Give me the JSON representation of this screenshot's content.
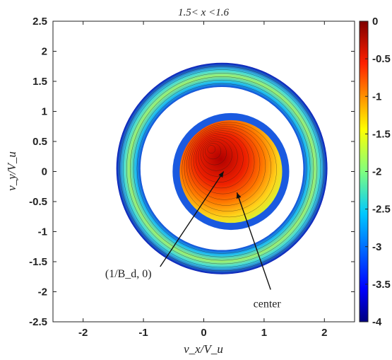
{
  "chart_data": {
    "type": "heatmap",
    "title": "1.5< x <1.6",
    "xlabel": "v_x/V_u",
    "ylabel": "v_y/V_u",
    "xlim": [
      -2.5,
      2.5
    ],
    "ylim": [
      -2.5,
      2.5
    ],
    "x_ticks": [
      "-2",
      "-1",
      "0",
      "1",
      "2"
    ],
    "y_ticks": [
      "2.5",
      "2",
      "1.5",
      "1",
      "0.5",
      "0",
      "-0.5",
      "-1",
      "-1.5",
      "-2",
      "-2.5"
    ],
    "colorbar": {
      "range": [
        -4,
        0
      ],
      "ticks": [
        "0",
        "-0.5",
        "-1",
        "-1.5",
        "-2",
        "-2.5",
        "-3",
        "-3.5",
        "-4"
      ],
      "colormap": [
        "#00007f",
        "#0000ff",
        "#00a0ff",
        "#2ee6cc",
        "#7fff7f",
        "#e6ff1a",
        "#ffa000",
        "#ff2000",
        "#7f0000"
      ]
    },
    "features": {
      "inner_disk": {
        "center": [
          0.45,
          0.0
        ],
        "radius": 0.85
      },
      "outer_ring": {
        "center": [
          0.3,
          0.05
        ],
        "inner_radius": 1.35,
        "outer_radius": 1.75
      },
      "peak": [
        0.1,
        0.4
      ]
    },
    "annotations": [
      {
        "label": "(1/B_d, 0)",
        "point": [
          0.33,
          0.0
        ],
        "text_at": [
          -1.25,
          -1.7
        ]
      },
      {
        "label": "center",
        "point": [
          0.55,
          -0.35
        ],
        "text_at": [
          1.05,
          -2.2
        ]
      }
    ]
  }
}
